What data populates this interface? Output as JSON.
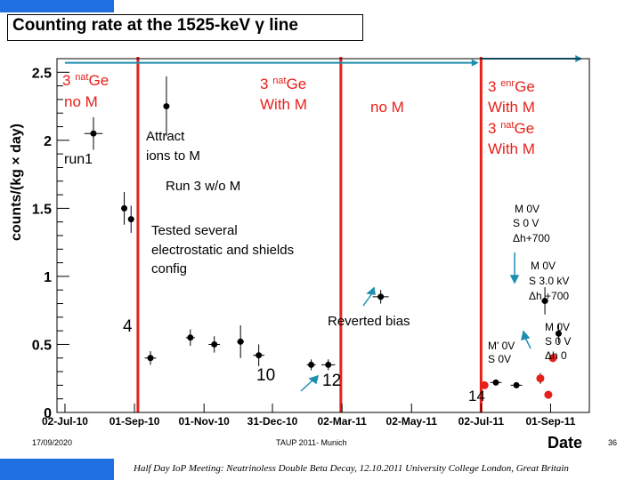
{
  "slide": {
    "title": "Counting rate at the 1525-keV γ line",
    "footer_date": "17/09/2020",
    "footer_center": "TAUP 2011- Munich",
    "page_number": "36",
    "meeting": "Half Day IoP Meeting: Neutrinoless Double Beta Decay, 12.10.2011 University College London, Great Britain",
    "accent_color": "#1f6fe0"
  },
  "chart_data": {
    "type": "scatter",
    "xlabel": "Date",
    "ylabel": "counts/(kg × day)",
    "ylim": [
      0,
      2.6
    ],
    "y_ticks": [
      "0",
      "0.5",
      "1",
      "1.5",
      "2",
      "2.5"
    ],
    "y_tick_values": [
      0,
      0.5,
      1,
      1.5,
      2,
      2.5
    ],
    "x_ticks": [
      "02-Jul-10",
      "01-Sep-10",
      "01-Nov-10",
      "31-Dec-10",
      "02-Mar-11",
      "02-May-11",
      "02-Jul-11",
      "01-Sep-11"
    ],
    "x_tick_dates": [
      "2010-07-02",
      "2010-09-01",
      "2010-11-01",
      "2010-12-31",
      "2011-03-02",
      "2011-05-02",
      "2011-07-02",
      "2011-09-01"
    ],
    "xlim": [
      "2010-06-25",
      "2011-10-05"
    ],
    "grid": false,
    "series": [
      {
        "color": "#000000",
        "points": [
          {
            "x": "2010-07-27",
            "y": 2.05,
            "xerr_days": 8,
            "yerr": 0.12
          },
          {
            "x": "2010-08-23",
            "y": 1.5,
            "xerr_days": 0,
            "yerr": 0.12
          },
          {
            "x": "2010-08-29",
            "y": 1.42,
            "xerr_days": 0,
            "yerr": 0.1
          },
          {
            "x": "2010-09-15",
            "y": 0.4,
            "xerr_days": 5,
            "yerr": 0.05
          },
          {
            "x": "2010-09-29",
            "y": 2.25,
            "xerr_days": 1,
            "yerr": 0.22
          },
          {
            "x": "2010-10-20",
            "y": 0.55,
            "xerr_days": 4,
            "yerr": 0.06
          },
          {
            "x": "2010-11-10",
            "y": 0.5,
            "xerr_days": 5,
            "yerr": 0.06
          },
          {
            "x": "2010-12-03",
            "y": 0.52,
            "xerr_days": 3,
            "yerr": 0.12
          },
          {
            "x": "2010-12-19",
            "y": 0.42,
            "xerr_days": 5,
            "yerr": 0.08
          },
          {
            "x": "2011-02-03",
            "y": 0.35,
            "xerr_days": 4,
            "yerr": 0.04
          },
          {
            "x": "2011-02-18",
            "y": 0.35,
            "xerr_days": 6,
            "yerr": 0.04
          },
          {
            "x": "2011-04-05",
            "y": 0.85,
            "xerr_days": 7,
            "yerr": 0.05
          },
          {
            "x": "2011-08-27",
            "y": 0.82,
            "xerr_days": 3,
            "yerr": 0.1
          },
          {
            "x": "2011-09-08",
            "y": 0.58,
            "xerr_days": 2,
            "yerr": 0.07
          }
        ]
      },
      {
        "color": "#e8201a",
        "points": [
          {
            "x": "2011-07-05",
            "y": 0.2,
            "xerr_days": 0,
            "yerr": 0.02
          },
          {
            "x": "2011-08-23",
            "y": 0.25,
            "xerr_days": 0,
            "yerr": 0.04
          },
          {
            "x": "2011-08-30",
            "y": 0.13,
            "xerr_days": 0,
            "yerr": 0.03
          },
          {
            "x": "2011-09-03",
            "y": 0.4,
            "xerr_days": 0,
            "yerr": 0.03
          }
        ]
      },
      {
        "color": "#000000",
        "points": [
          {
            "x": "2011-07-15",
            "y": 0.22,
            "xerr_days": 5,
            "yerr": 0.02
          },
          {
            "x": "2011-08-02",
            "y": 0.2,
            "xerr_days": 5,
            "yerr": 0.02
          }
        ]
      }
    ],
    "vertical_lines": {
      "color": "#e8201a",
      "dates": [
        "2010-09-04",
        "2011-03-01",
        "2011-07-02"
      ]
    },
    "range_arrows": [
      {
        "from": "2010-07-02",
        "to": "2011-06-30",
        "y": 2.57,
        "color": "#1f8fb0"
      },
      {
        "from": "2011-07-02",
        "to": "2011-09-29",
        "y": 2.6,
        "color": "#1f8fb0"
      }
    ],
    "annotations": {
      "nat_no_m": {
        "line1_num": "3 ",
        "line1_sup": "nat",
        "line1_tail": "Ge",
        "line2": "no M"
      },
      "nat_with_m": {
        "line1_num": "3 ",
        "line1_sup": "nat",
        "line1_tail": "Ge",
        "line2": "With M"
      },
      "no_m": "no M",
      "enr_with_m": {
        "line1_num": "3 ",
        "line1_sup": "enr",
        "line1_tail": "Ge",
        "line2": "With M"
      },
      "nat_with_m_2": {
        "line1_num": "3 ",
        "line1_sup": "nat",
        "line1_tail": "Ge",
        "line2": "With M"
      },
      "run1": "run1",
      "attract": [
        "Attract",
        "ions to M"
      ],
      "run3": "Run 3 w/o M",
      "tested": [
        "Tested several",
        "electrostatic and shields",
        "config"
      ],
      "m0v_1": [
        "M 0V",
        "S 0 V",
        "Δh+700"
      ],
      "m0v_2": [
        "M 0V",
        "S 3.0 kV",
        "Δh +700"
      ],
      "m0v_3": [
        "M 0V",
        "S 0 V",
        "Δh 0"
      ],
      "mprime": [
        "M' 0V",
        "S  0V"
      ],
      "reverted": "Reverted bias",
      "n4": "4",
      "n10": "10",
      "n12": "12",
      "n14": "14"
    }
  }
}
